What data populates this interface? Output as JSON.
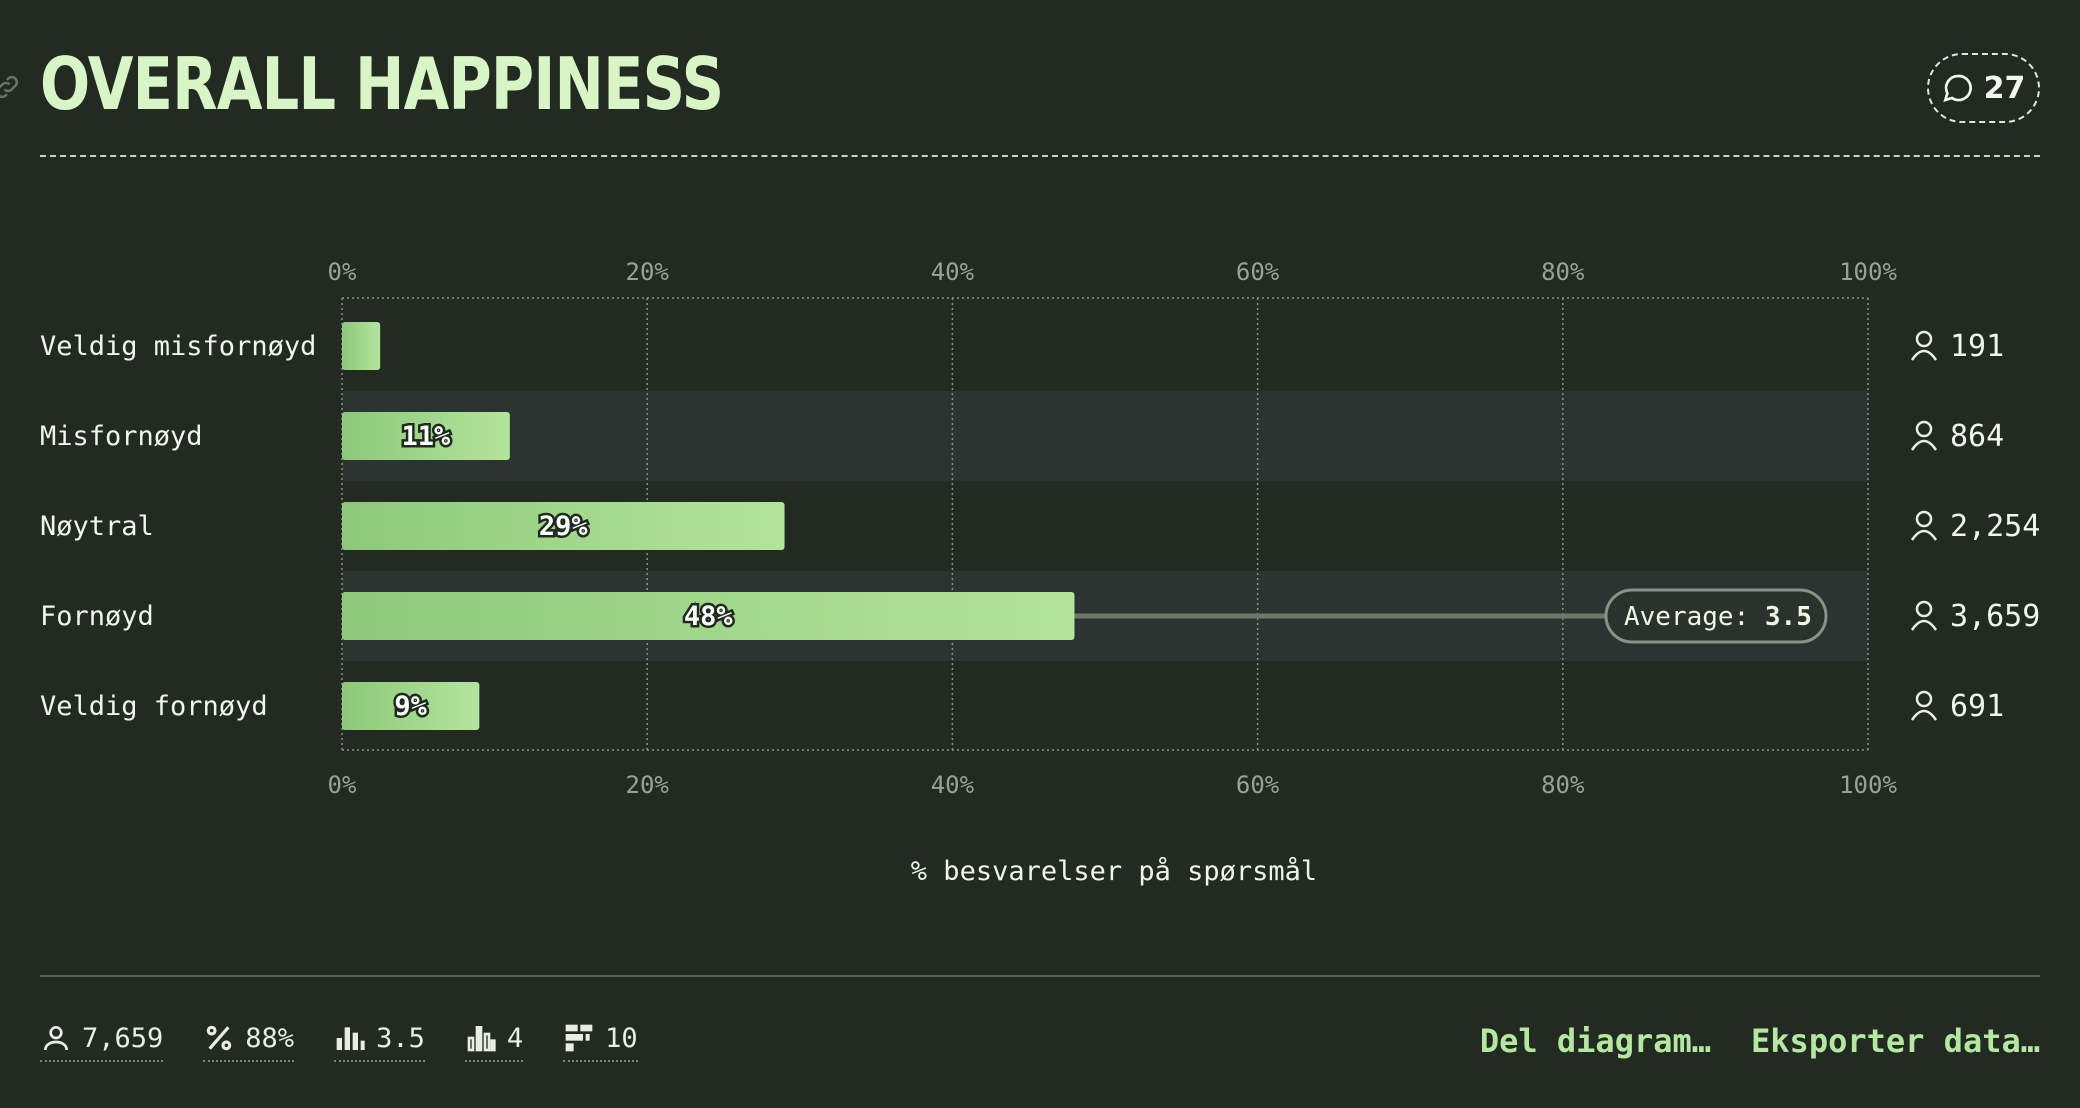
{
  "header": {
    "title": "OVERALL HAPPINESS",
    "comment_count": "27"
  },
  "chart_data": {
    "type": "bar",
    "orientation": "horizontal",
    "categories": [
      "Veldig misfornøyd",
      "Misfornøyd",
      "Nøytral",
      "Fornøyd",
      "Veldig fornøyd"
    ],
    "values": [
      2.5,
      11,
      29,
      48,
      9
    ],
    "value_labels": [
      "",
      "11%",
      "29%",
      "48%",
      "9%"
    ],
    "counts": [
      "191",
      "864",
      "2,254",
      "3,659",
      "691"
    ],
    "xlim": [
      0,
      100
    ],
    "xticks": [
      "0%",
      "20%",
      "40%",
      "60%",
      "80%",
      "100%"
    ],
    "xlabel": "% besvarelser på spørsmål",
    "grid": true,
    "average": {
      "label": "Average:",
      "value": "3.5",
      "row": 3
    }
  },
  "footer": {
    "stats": [
      {
        "icon": "person-icon",
        "value": "7,659"
      },
      {
        "icon": "percent-icon",
        "value": "88%"
      },
      {
        "icon": "bar-chart-icon",
        "value": "3.5"
      },
      {
        "icon": "bar-chart-outline-icon",
        "value": "4"
      },
      {
        "icon": "distribution-icon",
        "value": "10"
      }
    ],
    "actions": {
      "share": "Del diagram…",
      "export": "Eksporter data…"
    }
  },
  "colors": {
    "background": "#232a22",
    "bar_start": "#8ec87a",
    "bar_end": "#b2e59c",
    "row_stripe": "#2b3430",
    "title": "#d8f5c6",
    "accent": "#b4e8a0"
  }
}
